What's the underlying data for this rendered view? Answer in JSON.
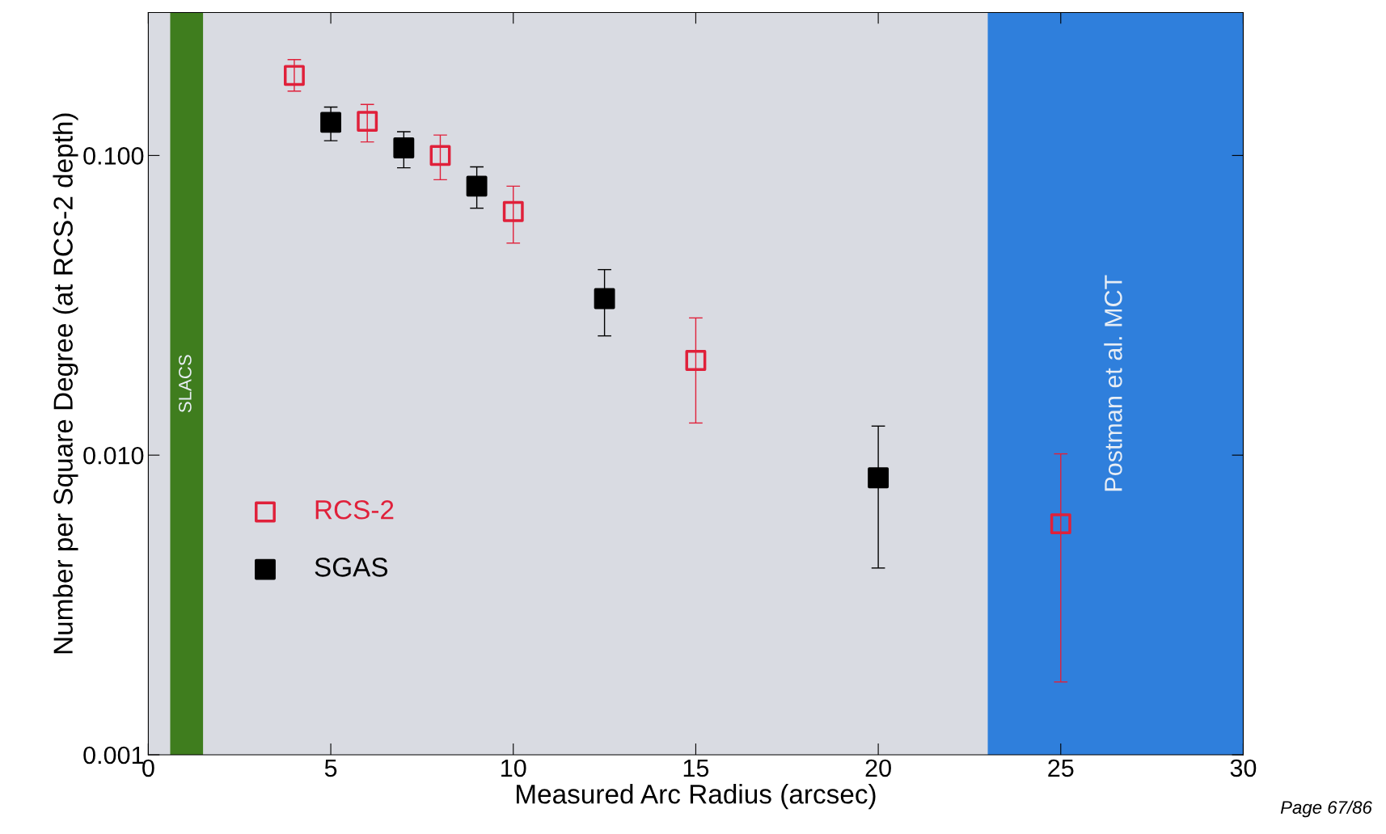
{
  "chart_data": {
    "type": "scatter",
    "xlabel": "Measured Arc Radius (arcsec)",
    "ylabel": "Number per Square Degree (at RCS-2 depth)",
    "log": "y",
    "xlim": [
      0,
      30
    ],
    "xticks": [
      0,
      5,
      10,
      15,
      20,
      25,
      30
    ],
    "ylim": [
      0.001,
      0.3
    ],
    "yticks": [
      {
        "value": 0.001,
        "label": "0.001"
      },
      {
        "value": 0.01,
        "label": "0.010"
      },
      {
        "value": 0.1,
        "label": "0.100"
      }
    ],
    "series": [
      {
        "name": "RCS-2",
        "color": "#e0203a",
        "marker": "square_open",
        "x": [
          4,
          6,
          8,
          10,
          15,
          25
        ],
        "values": [
          0.185,
          0.13,
          0.1,
          0.065,
          0.0207,
          0.0059
        ],
        "errors": [
          [
            0.164,
            0.209
          ],
          [
            0.111,
            0.148
          ],
          [
            0.083,
            0.117
          ],
          [
            0.051,
            0.079
          ],
          [
            0.0128,
            0.0287
          ],
          [
            0.00175,
            0.0101
          ]
        ]
      },
      {
        "name": "SGAS",
        "color": "#000000",
        "marker": "square",
        "x": [
          5,
          7,
          9,
          12.5,
          20
        ],
        "values": [
          0.129,
          0.106,
          0.079,
          0.0333,
          0.0084
        ],
        "errors": [
          [
            0.112,
            0.145
          ],
          [
            0.091,
            0.12
          ],
          [
            0.0667,
            0.0916
          ],
          [
            0.025,
            0.0416
          ],
          [
            0.0042,
            0.0125
          ]
        ]
      }
    ],
    "bands": [
      {
        "axis": "x",
        "from": 0.6,
        "to": 1.5,
        "label": "SLACS",
        "color": "#3f7d1e"
      },
      {
        "axis": "x",
        "from": 23,
        "to": 30,
        "label": "Postman et al. MCT",
        "color": "#2f7fdc"
      }
    ],
    "legend": "bottom left",
    "annotations": [
      "Page 67/86"
    ]
  }
}
